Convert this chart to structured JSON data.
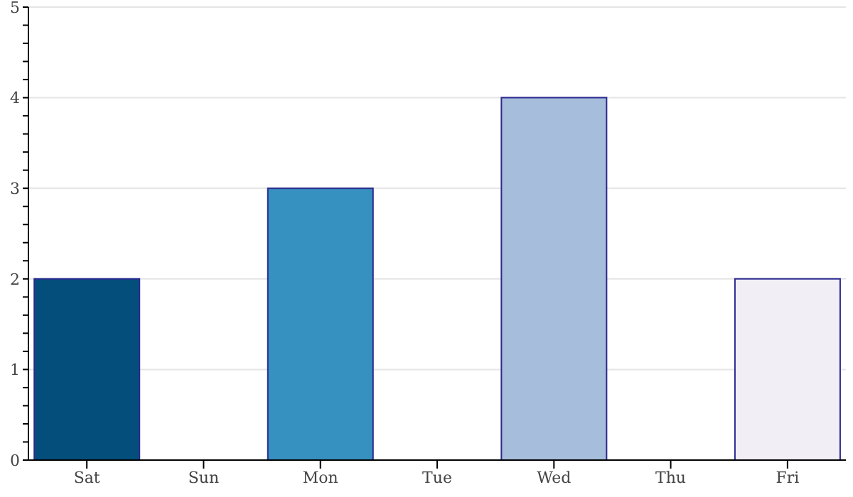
{
  "chart_data": {
    "type": "bar",
    "categories": [
      "Sat",
      "Sun",
      "Mon",
      "Tue",
      "Wed",
      "Thu",
      "Fri"
    ],
    "values": [
      2,
      0,
      3,
      0,
      4,
      0,
      2
    ],
    "colors": [
      "#034e7b",
      "#0570b0",
      "#3690c0",
      "#74a9cf",
      "#a6bddb",
      "#d0d1e6",
      "#f1eef6"
    ],
    "ylim": [
      0,
      5
    ],
    "yticks": [
      0,
      {
        "value": 0.2,
        "label": null
      },
      {
        "value": 0.4,
        "label": null
      },
      {
        "value": 0.6,
        "label": null
      },
      {
        "value": 0.8,
        "label": null
      },
      1,
      {
        "value": 1.2,
        "label": null
      },
      {
        "value": 1.4,
        "label": null
      },
      {
        "value": 1.6,
        "label": null
      },
      {
        "value": 1.8,
        "label": null
      },
      2,
      {
        "value": 2.2,
        "label": null
      },
      {
        "value": 2.4,
        "label": null
      },
      {
        "value": 2.6,
        "label": null
      },
      {
        "value": 2.8,
        "label": null
      },
      3,
      {
        "value": 3.2,
        "label": null
      },
      {
        "value": 3.4,
        "label": null
      },
      {
        "value": 3.6,
        "label": null
      },
      {
        "value": 3.8,
        "label": null
      },
      4,
      {
        "value": 4.2,
        "label": null
      },
      {
        "value": 4.4,
        "label": null
      },
      {
        "value": 4.6,
        "label": null
      },
      {
        "value": 4.8,
        "label": null
      },
      5
    ],
    "grid": "y",
    "legend": false
  }
}
